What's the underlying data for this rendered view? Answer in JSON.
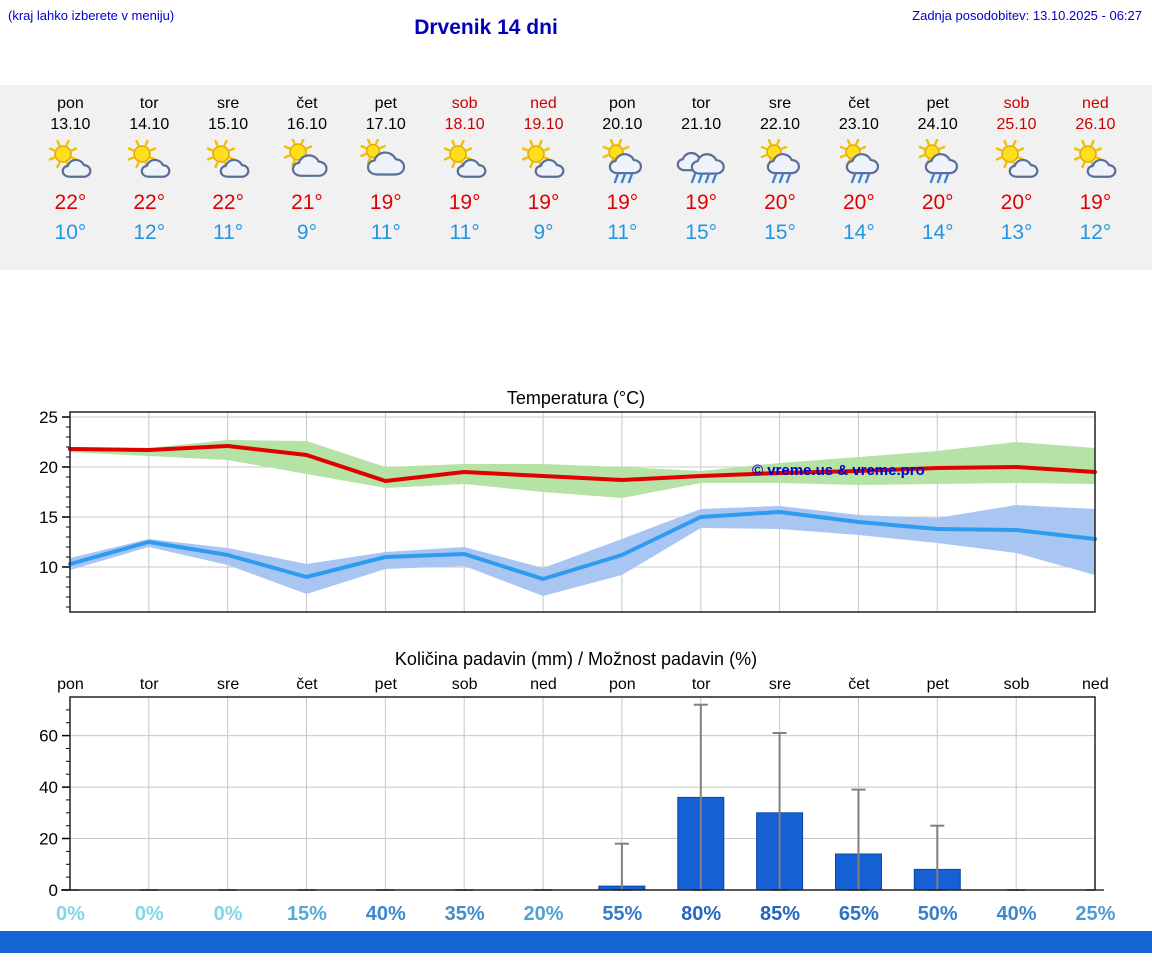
{
  "header": {
    "hint": "(kraj lahko izberete v meniju)",
    "title": "Drvenik 14 dni",
    "updated": "Zadnja posodobitev: 13.10.2025 - 06:27"
  },
  "colors": {
    "link_blue": "#0000cc",
    "weekend_red": "#cc0000",
    "high_red": "#e10000",
    "low_blue": "#2596e0",
    "strip_bg": "#f1f1f1",
    "bottom_bar": "#1565d4"
  },
  "forecast": {
    "days": [
      {
        "name": "pon",
        "date": "13.10",
        "weekend": false,
        "icon": "partly-sunny",
        "high": "22°",
        "low": "10°"
      },
      {
        "name": "tor",
        "date": "14.10",
        "weekend": false,
        "icon": "partly-sunny",
        "high": "22°",
        "low": "12°"
      },
      {
        "name": "sre",
        "date": "15.10",
        "weekend": false,
        "icon": "partly-sunny",
        "high": "22°",
        "low": "11°"
      },
      {
        "name": "čet",
        "date": "16.10",
        "weekend": false,
        "icon": "partly-sunny-cloud",
        "high": "21°",
        "low": "9°"
      },
      {
        "name": "pet",
        "date": "17.10",
        "weekend": false,
        "icon": "cloudy",
        "high": "19°",
        "low": "11°"
      },
      {
        "name": "sob",
        "date": "18.10",
        "weekend": true,
        "icon": "partly-sunny",
        "high": "19°",
        "low": "11°"
      },
      {
        "name": "ned",
        "date": "19.10",
        "weekend": true,
        "icon": "partly-sunny",
        "high": "19°",
        "low": "9°"
      },
      {
        "name": "pon",
        "date": "20.10",
        "weekend": false,
        "icon": "partly-sunny-rain",
        "high": "19°",
        "low": "11°"
      },
      {
        "name": "tor",
        "date": "21.10",
        "weekend": false,
        "icon": "cloudy-rain",
        "high": "19°",
        "low": "15°"
      },
      {
        "name": "sre",
        "date": "22.10",
        "weekend": false,
        "icon": "partly-sunny-rain",
        "high": "20°",
        "low": "15°"
      },
      {
        "name": "čet",
        "date": "23.10",
        "weekend": false,
        "icon": "partly-sunny-rain",
        "high": "20°",
        "low": "14°"
      },
      {
        "name": "pet",
        "date": "24.10",
        "weekend": false,
        "icon": "partly-sunny-rain",
        "high": "20°",
        "low": "14°"
      },
      {
        "name": "sob",
        "date": "25.10",
        "weekend": true,
        "icon": "partly-sunny",
        "high": "20°",
        "low": "13°"
      },
      {
        "name": "ned",
        "date": "26.10",
        "weekend": true,
        "icon": "partly-sunny",
        "high": "19°",
        "low": "12°"
      }
    ]
  },
  "chart_data": [
    {
      "type": "line",
      "title": "Temperatura (°C)",
      "watermark": "© vreme.us & vreme.pro",
      "categories": [
        "pon",
        "tor",
        "sre",
        "čet",
        "pet",
        "sob",
        "ned",
        "pon",
        "tor",
        "sre",
        "čet",
        "pet",
        "sob",
        "ned"
      ],
      "ylim": [
        5.5,
        25.5
      ],
      "yticks": [
        10,
        15,
        20,
        25
      ],
      "grid": true,
      "series": [
        {
          "name": "max-temp",
          "color": "#e10000",
          "values": [
            21.8,
            21.7,
            22.1,
            21.2,
            18.6,
            19.5,
            19.1,
            18.7,
            19.1,
            19.4,
            19.6,
            19.9,
            20.0,
            19.5
          ]
        },
        {
          "name": "min-temp",
          "color": "#2e9bf0",
          "values": [
            10.3,
            12.5,
            11.2,
            9.0,
            11.0,
            11.3,
            8.8,
            11.2,
            15.0,
            15.5,
            14.5,
            13.8,
            13.7,
            12.8
          ]
        }
      ],
      "bands": [
        {
          "name": "max-range",
          "color": "#b5e2a5",
          "upper": [
            22.0,
            21.9,
            22.7,
            22.6,
            20.0,
            20.3,
            20.3,
            20.0,
            19.6,
            20.4,
            21.0,
            21.6,
            22.5,
            21.9
          ],
          "lower": [
            21.5,
            21.1,
            20.7,
            19.3,
            17.9,
            18.3,
            17.5,
            16.9,
            18.4,
            18.4,
            18.2,
            18.3,
            18.4,
            18.3
          ]
        },
        {
          "name": "min-range",
          "color": "#a9c6f2",
          "upper": [
            10.9,
            12.8,
            11.9,
            10.3,
            11.5,
            12.0,
            9.9,
            12.8,
            15.8,
            16.1,
            15.2,
            14.9,
            16.2,
            15.8
          ],
          "lower": [
            9.7,
            12.0,
            10.2,
            7.3,
            9.8,
            10.1,
            7.1,
            9.2,
            13.9,
            13.8,
            13.2,
            12.4,
            11.4,
            9.2
          ]
        }
      ]
    },
    {
      "type": "bar",
      "title": "Količina padavin (mm) / Možnost padavin (%)",
      "categories": [
        "pon",
        "tor",
        "sre",
        "čet",
        "pet",
        "sob",
        "ned",
        "pon",
        "tor",
        "sre",
        "čet",
        "pet",
        "sob",
        "ned"
      ],
      "values": [
        0,
        0,
        0,
        0,
        0,
        0,
        0,
        1.5,
        36,
        30,
        14,
        8,
        0,
        0
      ],
      "whisker_max": [
        0,
        0,
        0,
        0,
        0,
        0,
        0,
        18,
        72,
        61,
        39,
        25,
        0,
        0
      ],
      "percent_labels": [
        "0%",
        "0%",
        "0%",
        "15%",
        "40%",
        "35%",
        "20%",
        "55%",
        "80%",
        "85%",
        "65%",
        "50%",
        "40%",
        "25%"
      ],
      "percent_values": [
        0,
        0,
        0,
        15,
        40,
        35,
        20,
        55,
        80,
        85,
        65,
        50,
        40,
        25
      ],
      "percent_colors": {
        "low": "#7fd8e6",
        "high": "#1a5abe"
      },
      "ylim": [
        0,
        75
      ],
      "yticks": [
        0,
        20,
        40,
        60
      ],
      "bar_color": "#1560d4",
      "grid": true
    }
  ]
}
